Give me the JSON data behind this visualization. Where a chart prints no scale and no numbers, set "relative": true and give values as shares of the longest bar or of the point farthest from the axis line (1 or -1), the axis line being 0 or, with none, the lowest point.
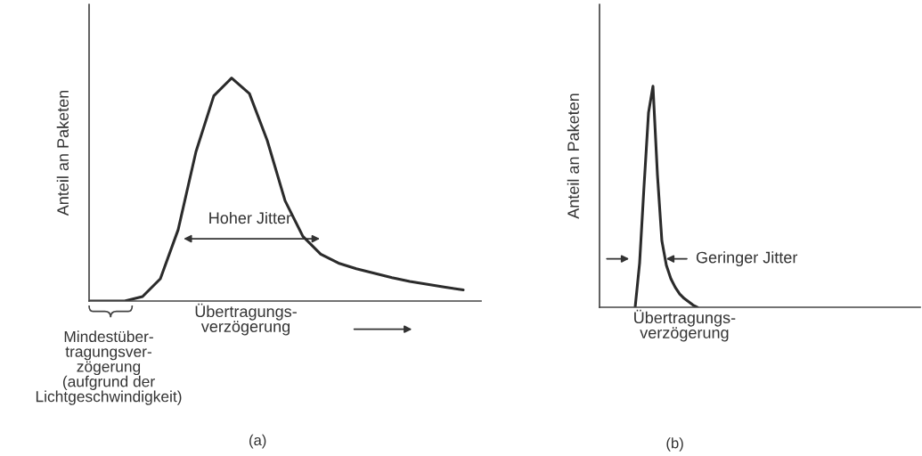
{
  "chart_data": [
    {
      "type": "line",
      "relative": true,
      "xlabel": "Übertragungs-\nverzögerung",
      "ylabel": "Anteil an Paketen",
      "categories": [
        null,
        null,
        null,
        null,
        null,
        null,
        null,
        null,
        null,
        null,
        null,
        null,
        null,
        null,
        null,
        null,
        null,
        null,
        null,
        null,
        null,
        null,
        null
      ],
      "series": [
        {
          "color": "#2b2b2b",
          "values": [
            0,
            0,
            0,
            0.02,
            0.1,
            0.32,
            0.67,
            0.92,
            1.0,
            0.93,
            0.72,
            0.45,
            0.29,
            0.21,
            0.17,
            0.145,
            0.125,
            0.105,
            0.088,
            0.075,
            0.062,
            0.05,
            null
          ]
        }
      ],
      "annotations": [
        "Hoher Jitter",
        "Mindestüber-\ntragungsver-\nzögerung\n(aufgrund der\nLichtgeschwindigkeit)",
        "(a)"
      ],
      "grid": false,
      "legend": false,
      "tick_labels": false
    },
    {
      "type": "line",
      "relative": true,
      "xlabel": "Übertragungs-\nverzögerung",
      "ylabel": "Anteil an Paketen",
      "categories": [
        null,
        null,
        null,
        null,
        null,
        null,
        null,
        null,
        null,
        null,
        null,
        null,
        null,
        null,
        null,
        null,
        null,
        null,
        null,
        null,
        null,
        null,
        null,
        null,
        null,
        null,
        null,
        null,
        null,
        null,
        null,
        null,
        null,
        null,
        null,
        null,
        null,
        null,
        null,
        null,
        null,
        null,
        null,
        null,
        null,
        null,
        null,
        null,
        null,
        null,
        null,
        null,
        null,
        null,
        null,
        null,
        null,
        null,
        null,
        null,
        null,
        null,
        null,
        null,
        null,
        null,
        null,
        null,
        null,
        null,
        null,
        null,
        null
      ],
      "series": [
        {
          "color": "#2b2b2b",
          "values": [
            null,
            null,
            null,
            null,
            null,
            null,
            null,
            null,
            0,
            0.2,
            0.55,
            0.88,
            1.0,
            0.6,
            0.3,
            0.19,
            0.13,
            0.09,
            0.06,
            0.04,
            0.025,
            0.01,
            0,
            null,
            null,
            null,
            null,
            null,
            null,
            null,
            null,
            null,
            null,
            null,
            null,
            null,
            null,
            null,
            null,
            null,
            null,
            null,
            null,
            null,
            null,
            null,
            null,
            null,
            null,
            null,
            null,
            null,
            null,
            null,
            null,
            null,
            null,
            null,
            null,
            null,
            null,
            null,
            null,
            null,
            null,
            null,
            null,
            null,
            null,
            null,
            null,
            null,
            null
          ]
        }
      ],
      "annotations": [
        "Geringer Jitter",
        "(b)"
      ],
      "grid": false,
      "legend": false,
      "tick_labels": false
    }
  ]
}
